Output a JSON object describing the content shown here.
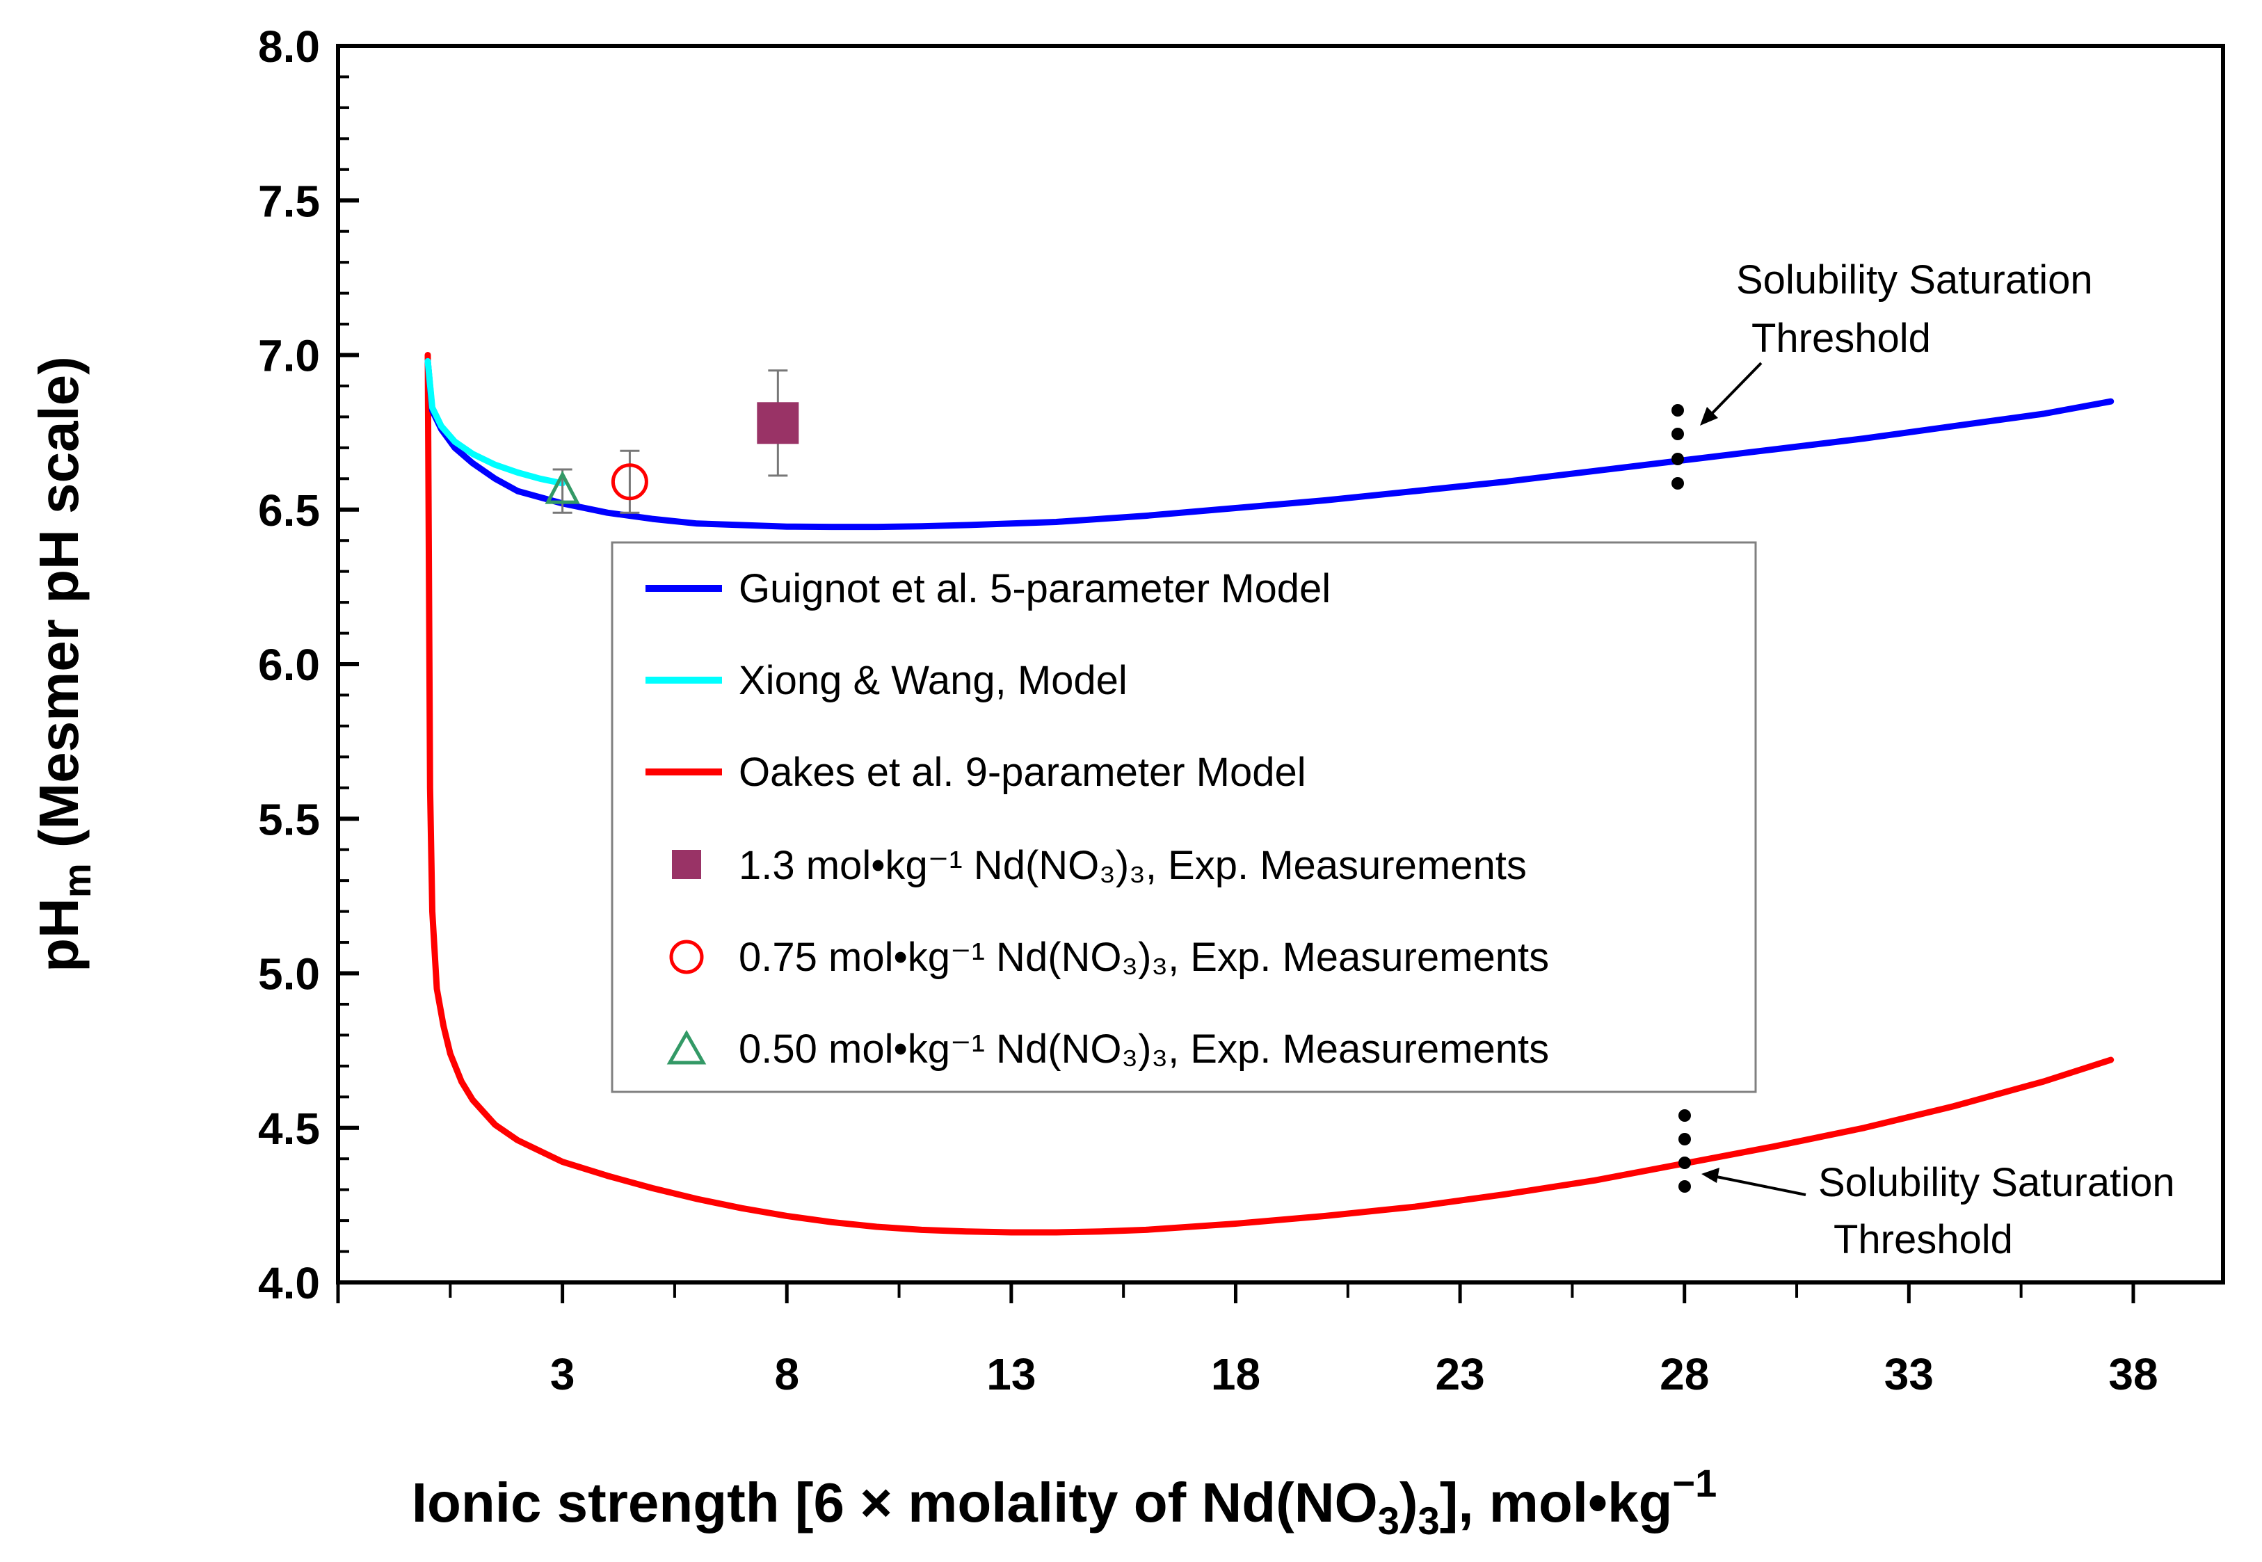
{
  "chart_data": {
    "type": "line",
    "xlabel": {
      "main": "Ionic strength [6 × molality of Nd(NO",
      "sub": "3",
      "mid": ")",
      "sub2": "3",
      "tail": "], mol•kg",
      "sup": "−1"
    },
    "ylabel": {
      "main": "pH",
      "sub": "m",
      "tail": " (Mesmer pH scale)"
    },
    "xlim": [
      -2,
      40
    ],
    "ylim": [
      4.0,
      8.0
    ],
    "x_ticks": [
      3,
      8,
      13,
      18,
      23,
      28,
      33,
      38
    ],
    "y_ticks": [
      "4.0",
      "4.5",
      "5.0",
      "5.5",
      "6.0",
      "6.5",
      "7.0",
      "7.5",
      "8.0"
    ],
    "grid": false,
    "legend_position": "center",
    "series": [
      {
        "name": "Guignot et al. 5-parameter Model",
        "color": "#0000ff",
        "kind": "line",
        "x": [
          0.0,
          0.1,
          0.3,
          0.6,
          1.0,
          1.5,
          2.0,
          3.0,
          4.0,
          5.0,
          6.0,
          7.0,
          8.0,
          9.0,
          10.0,
          11.0,
          12.0,
          14.0,
          16.0,
          18.0,
          20.0,
          22.0,
          24.0,
          26.0,
          28.0,
          30.0,
          32.0,
          34.0,
          36.0,
          37.5
        ],
        "y": [
          6.98,
          6.82,
          6.76,
          6.7,
          6.65,
          6.6,
          6.56,
          6.52,
          6.49,
          6.47,
          6.455,
          6.45,
          6.445,
          6.444,
          6.444,
          6.446,
          6.45,
          6.46,
          6.48,
          6.505,
          6.53,
          6.56,
          6.59,
          6.625,
          6.66,
          6.695,
          6.73,
          6.77,
          6.81,
          6.85
        ]
      },
      {
        "name": "Xiong & Wang, Model",
        "color": "#00ffff",
        "kind": "line",
        "x": [
          0.0,
          0.1,
          0.3,
          0.6,
          1.0,
          1.5,
          2.0,
          2.5,
          3.0
        ],
        "y": [
          6.98,
          6.83,
          6.77,
          6.72,
          6.68,
          6.645,
          6.62,
          6.6,
          6.585
        ]
      },
      {
        "name": "Oakes et al. 9-parameter Model",
        "color": "#ff0000",
        "kind": "line",
        "x": [
          0.0,
          0.05,
          0.1,
          0.2,
          0.35,
          0.5,
          0.75,
          1.0,
          1.5,
          2.0,
          3.0,
          4.0,
          5.0,
          6.0,
          7.0,
          8.0,
          9.0,
          10.0,
          11.0,
          12.0,
          13.0,
          14.0,
          15.0,
          16.0,
          18.0,
          20.0,
          22.0,
          24.0,
          26.0,
          28.0,
          30.0,
          32.0,
          34.0,
          36.0,
          37.5
        ],
        "y": [
          7.0,
          5.6,
          5.2,
          4.95,
          4.83,
          4.74,
          4.65,
          4.59,
          4.51,
          4.46,
          4.39,
          4.345,
          4.305,
          4.27,
          4.24,
          4.215,
          4.195,
          4.18,
          4.17,
          4.165,
          4.162,
          4.162,
          4.165,
          4.17,
          4.19,
          4.215,
          4.245,
          4.285,
          4.33,
          4.385,
          4.44,
          4.5,
          4.57,
          4.65,
          4.72
        ]
      },
      {
        "name": "1.3 mol•kg⁻¹ Nd(NO₃)₃, Exp. Measurements",
        "color": "#993366",
        "kind": "square",
        "x": [
          7.8
        ],
        "y": [
          6.78
        ],
        "err": [
          0.17
        ]
      },
      {
        "name": "0.75 mol•kg⁻¹ Nd(NO₃)₃, Exp. Measurements",
        "color": "#ff0000",
        "kind": "circle",
        "x": [
          4.5
        ],
        "y": [
          6.59
        ],
        "err": [
          0.1
        ]
      },
      {
        "name": "0.50 mol•kg⁻¹ Nd(NO₃)₃, Exp. Measurements",
        "color": "#339966",
        "kind": "triangle",
        "x": [
          3.0
        ],
        "y": [
          6.56
        ],
        "err": [
          0.07
        ]
      }
    ],
    "annotations": [
      {
        "lines": [
          "Solubility Saturation",
          "Threshold"
        ],
        "at": "upper"
      },
      {
        "lines": [
          "Solubility Saturation",
          "Threshold"
        ],
        "at": "lower"
      }
    ]
  }
}
